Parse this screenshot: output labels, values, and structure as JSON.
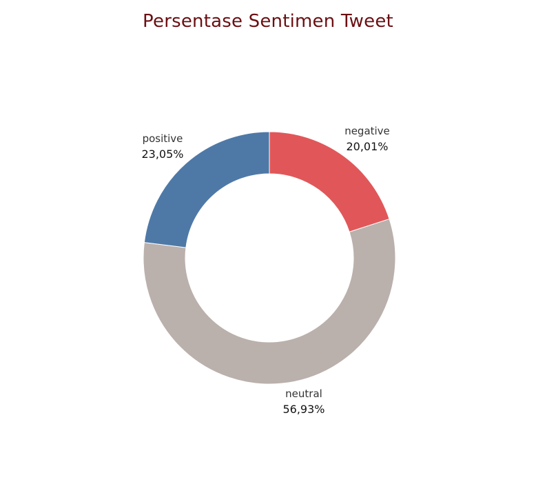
{
  "chart_data": {
    "type": "pie",
    "title": "Persentase Sentimen Tweet",
    "slices": [
      {
        "label": "negative",
        "value": 20.01,
        "value_label": "20,01%",
        "color": "#e15759"
      },
      {
        "label": "neutral",
        "value": 56.93,
        "value_label": "56,93%",
        "color": "#bab0ac"
      },
      {
        "label": "positive",
        "value": 23.05,
        "value_label": "23,05%",
        "color": "#4e79a7"
      }
    ],
    "start": "top",
    "direction": "clockwise",
    "hole": true
  }
}
